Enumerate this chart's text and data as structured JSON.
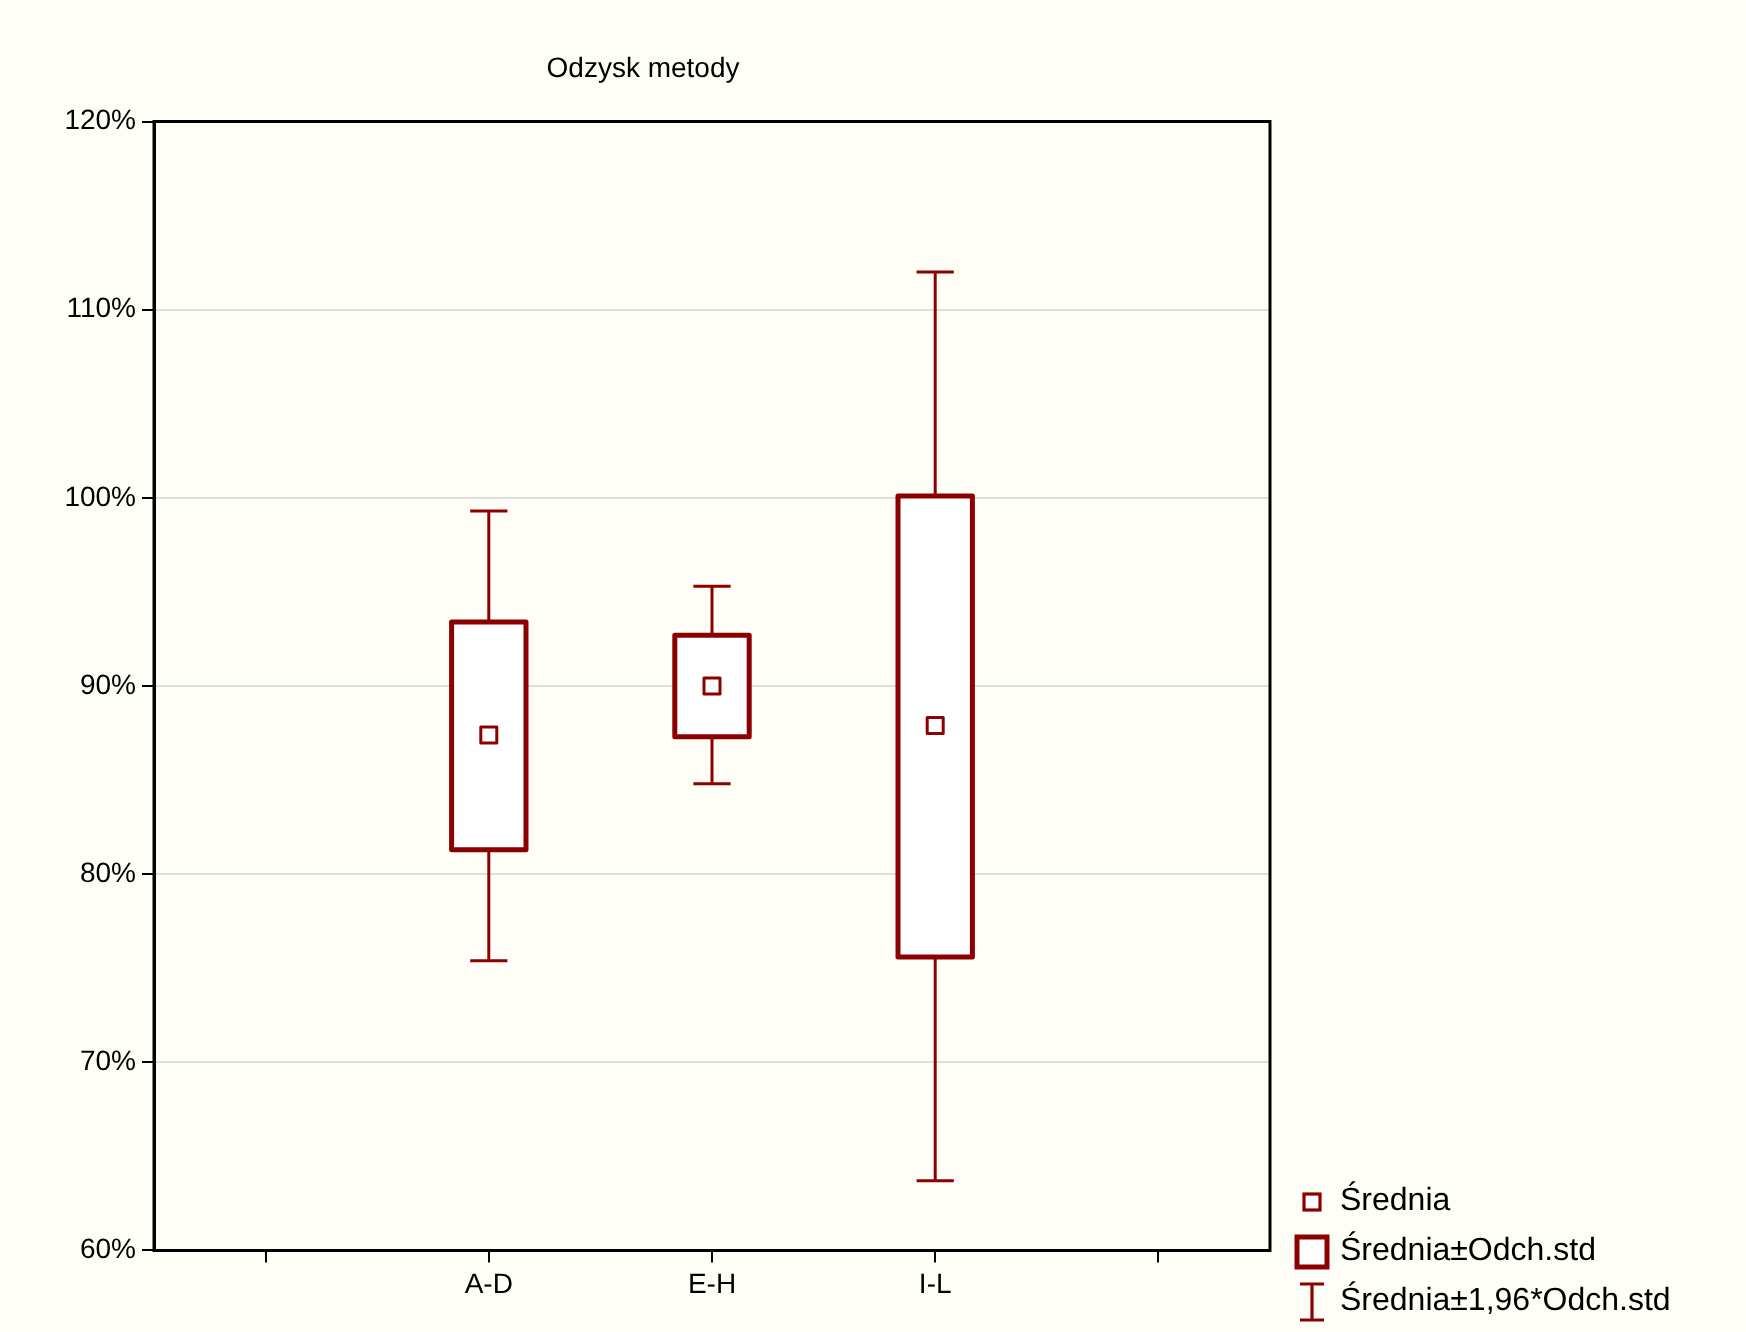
{
  "chart_data": {
    "type": "box",
    "title": "Odzysk metody",
    "categories": [
      null,
      "A-D",
      "E-H",
      "I-L",
      null
    ],
    "boxes": [
      null,
      {
        "low": 75.4,
        "q1": 81.3,
        "median": 87.4,
        "q3": 93.4,
        "high": 99.3
      },
      {
        "low": 84.8,
        "q1": 87.3,
        "median": 90.0,
        "q3": 92.7,
        "high": 95.3
      },
      {
        "low": 63.7,
        "q1": 75.6,
        "median": 87.9,
        "q3": 100.1,
        "high": 112.0
      },
      null
    ],
    "color": "#8b0000",
    "ylim": [
      60,
      120
    ],
    "yticks": [
      {
        "value": 60,
        "label": "60%"
      },
      {
        "value": 70,
        "label": "70%"
      },
      {
        "value": 80,
        "label": "80%"
      },
      {
        "value": 90,
        "label": "90%"
      },
      {
        "value": 100,
        "label": "100%"
      },
      {
        "value": 110,
        "label": "110%"
      },
      {
        "value": 120,
        "label": "120%"
      }
    ],
    "grid": "y",
    "annotations": [
      "Średnia",
      "Średnia±Odch.std",
      "Średnia±1,96*Odch.std"
    ]
  }
}
